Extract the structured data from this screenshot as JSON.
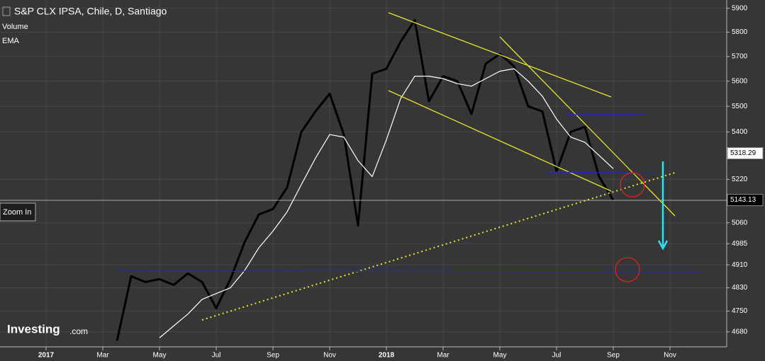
{
  "chart_data": {
    "type": "line",
    "title": "S&P CLX IPSA, Chile, D, Santiago",
    "indicators": [
      "Volume",
      "EMA"
    ],
    "zoom_button": "Zoom In",
    "logo": {
      "main": "Investing",
      "suffix": ".com"
    },
    "price_labels": [
      {
        "value": 5318.29,
        "label": "5318.29"
      },
      {
        "value": 5143.13,
        "label": "5143.13"
      }
    ],
    "categories": [
      "2017",
      null,
      null,
      null,
      "Mar",
      null,
      null,
      null,
      "May",
      null,
      null,
      null,
      "Jul",
      null,
      null,
      null,
      "Sep",
      null,
      null,
      null,
      "Nov",
      null,
      null,
      null,
      "2018",
      null,
      null,
      null,
      "Mar",
      null,
      null,
      null,
      "May",
      null,
      null,
      null,
      "Jul",
      null,
      null,
      null,
      "Sep",
      null,
      null,
      null,
      "Nov",
      null,
      null,
      null
    ],
    "series": [
      {
        "name": "S&P CLX IPSA",
        "color": "#000000",
        "values": [
          null,
          null,
          null,
          null,
          null,
          4650,
          4870,
          4850,
          4860,
          4840,
          4880,
          4850,
          4760,
          4860,
          4990,
          5090,
          5110,
          5190,
          5400,
          5480,
          5550,
          5390,
          5050,
          5630,
          5650,
          5760,
          5850,
          5520,
          5620,
          5600,
          5470,
          5670,
          5710,
          5660,
          5500,
          5480,
          5250,
          5400,
          5420,
          5230,
          5143.13,
          null,
          null,
          null,
          null,
          null,
          null,
          null
        ]
      },
      {
        "name": "EMA",
        "color": "#ffffff",
        "values": [
          null,
          null,
          null,
          null,
          null,
          null,
          null,
          null,
          4660,
          4700,
          4740,
          4790,
          4810,
          4830,
          4890,
          4970,
          5030,
          5100,
          5200,
          5300,
          5390,
          5380,
          5290,
          5230,
          5370,
          5530,
          5620,
          5620,
          5610,
          5590,
          5580,
          5610,
          5640,
          5650,
          5600,
          5540,
          5450,
          5380,
          5360,
          5310,
          5260,
          null,
          null,
          null,
          null,
          null,
          null,
          null
        ]
      }
    ],
    "ylim": [
      4630,
      5935
    ],
    "log_scale": true,
    "yticks": [
      5900,
      5800,
      5700,
      5600,
      5500,
      5400,
      5220,
      5060,
      4985,
      4910,
      4830,
      4750,
      4680
    ],
    "grid": true
  }
}
